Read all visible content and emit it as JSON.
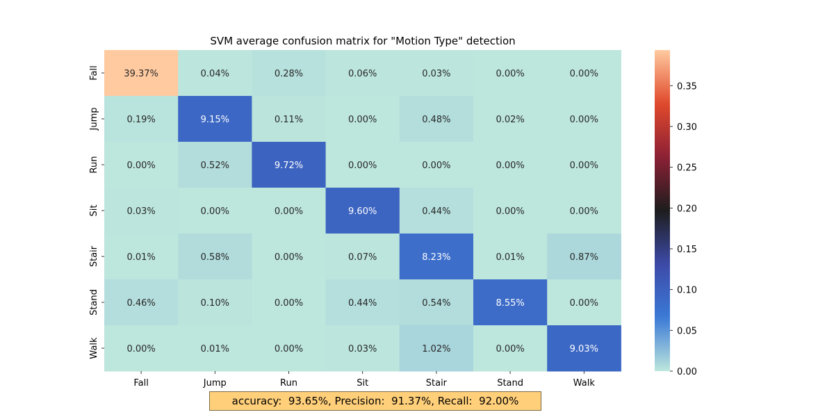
{
  "chart_data": {
    "type": "heatmap",
    "title": "SVM average confusion matrix for \"Motion Type\" detection",
    "row_labels": [
      "Fall",
      "Jump",
      "Run",
      "Sit",
      "Stair",
      "Stand",
      "Walk"
    ],
    "col_labels": [
      "Fall",
      "Jump",
      "Run",
      "Sit",
      "Stair",
      "Stand",
      "Walk"
    ],
    "values": [
      [
        0.3937,
        0.0004,
        0.0028,
        0.0006,
        0.0003,
        0.0,
        0.0
      ],
      [
        0.0019,
        0.0915,
        0.0011,
        0.0,
        0.0048,
        0.0002,
        0.0
      ],
      [
        0.0,
        0.0052,
        0.0972,
        0.0,
        0.0,
        0.0,
        0.0
      ],
      [
        0.0003,
        0.0,
        0.0,
        0.096,
        0.0044,
        0.0,
        0.0
      ],
      [
        0.0001,
        0.0058,
        0.0,
        0.0007,
        0.0823,
        0.0001,
        0.0087
      ],
      [
        0.0046,
        0.001,
        0.0,
        0.0044,
        0.0054,
        0.0855,
        0.0
      ],
      [
        0.0,
        0.0001,
        0.0,
        0.0003,
        0.0102,
        0.0,
        0.0903
      ]
    ],
    "cell_labels": [
      [
        "39.37%",
        "0.04%",
        "0.28%",
        "0.06%",
        "0.03%",
        "0.00%",
        "0.00%"
      ],
      [
        "0.19%",
        "9.15%",
        "0.11%",
        "0.00%",
        "0.48%",
        "0.02%",
        "0.00%"
      ],
      [
        "0.00%",
        "0.52%",
        "9.72%",
        "0.00%",
        "0.00%",
        "0.00%",
        "0.00%"
      ],
      [
        "0.03%",
        "0.00%",
        "0.00%",
        "9.60%",
        "0.44%",
        "0.00%",
        "0.00%"
      ],
      [
        "0.01%",
        "0.58%",
        "0.00%",
        "0.07%",
        "8.23%",
        "0.01%",
        "0.87%"
      ],
      [
        "0.46%",
        "0.10%",
        "0.00%",
        "0.44%",
        "0.54%",
        "8.55%",
        "0.00%"
      ],
      [
        "0.00%",
        "0.01%",
        "0.00%",
        "0.03%",
        "1.02%",
        "0.00%",
        "9.03%"
      ]
    ],
    "colorbar": {
      "range": [
        0,
        0.3937
      ],
      "ticks": [
        0.0,
        0.05,
        0.1,
        0.15,
        0.2,
        0.25,
        0.3,
        0.35
      ],
      "tick_labels": [
        "0.00",
        "0.05",
        "0.10",
        "0.15",
        "0.20",
        "0.25",
        "0.30",
        "0.35"
      ],
      "colormap": "icefire",
      "stops": [
        "#bde6dd",
        "#3b7ad6",
        "#3d4aa8",
        "#1d1d1d",
        "#8c2035",
        "#e0492b",
        "#ffcaa0"
      ]
    }
  },
  "summary": "accuracy:  93.65%, Precision:  91.37%, Recall:  92.00%"
}
